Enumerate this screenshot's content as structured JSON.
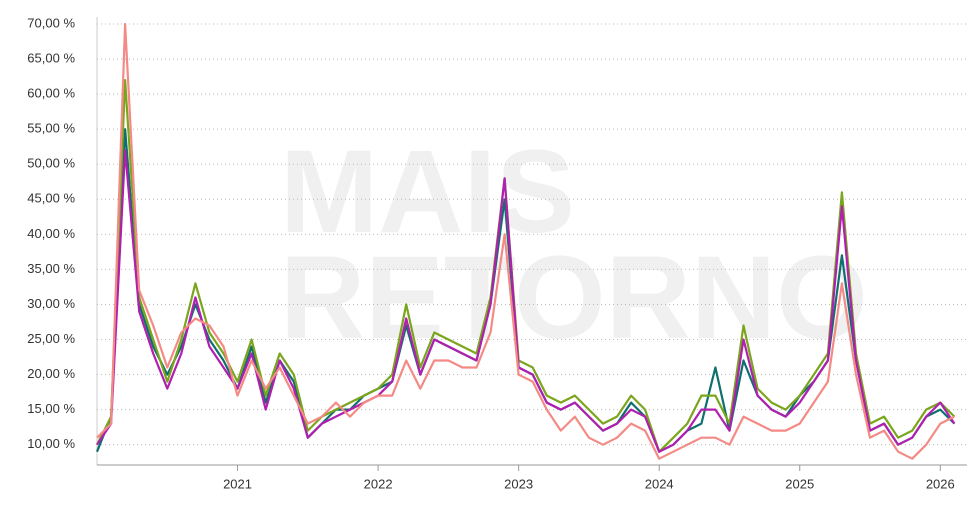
{
  "chart_data": {
    "type": "line",
    "watermark": [
      "MAIS",
      "RETORNO"
    ],
    "x": [
      2020.0,
      2020.1,
      2020.2,
      2020.3,
      2020.4,
      2020.5,
      2020.6,
      2020.7,
      2020.8,
      2020.9,
      2021.0,
      2021.1,
      2021.2,
      2021.3,
      2021.4,
      2021.5,
      2021.6,
      2021.7,
      2021.8,
      2021.9,
      2022.0,
      2022.1,
      2022.2,
      2022.3,
      2022.4,
      2022.5,
      2022.6,
      2022.7,
      2022.8,
      2022.9,
      2023.0,
      2023.1,
      2023.2,
      2023.3,
      2023.4,
      2023.5,
      2023.6,
      2023.7,
      2023.8,
      2023.9,
      2024.0,
      2024.1,
      2024.2,
      2024.3,
      2024.4,
      2024.5,
      2024.6,
      2024.7,
      2024.8,
      2024.9,
      2025.0,
      2025.1,
      2025.2,
      2025.3,
      2025.4,
      2025.5,
      2025.6,
      2025.7,
      2025.8,
      2025.9,
      2026.0,
      2026.1
    ],
    "series": [
      {
        "color": "#0f6e6e",
        "values": [
          9,
          14,
          55,
          30,
          24,
          20,
          24,
          30,
          25,
          22,
          18,
          24,
          16,
          22,
          19,
          11,
          13,
          15,
          15,
          17,
          18,
          19,
          27,
          20,
          25,
          24,
          23,
          22,
          30,
          45,
          21,
          20,
          16,
          15,
          16,
          14,
          12,
          13,
          16,
          14,
          9,
          10,
          12,
          13,
          21,
          12,
          22,
          17,
          15,
          14,
          17,
          19,
          22,
          37,
          22,
          12,
          13,
          10,
          11,
          14,
          15,
          13
        ]
      },
      {
        "color": "#7aa51c",
        "values": [
          10,
          14,
          62,
          31,
          25,
          19,
          25,
          33,
          26,
          23,
          19,
          25,
          17,
          23,
          20,
          12,
          14,
          15,
          16,
          17,
          18,
          20,
          30,
          21,
          26,
          25,
          24,
          23,
          31,
          48,
          22,
          21,
          17,
          16,
          17,
          15,
          13,
          14,
          17,
          15,
          9,
          11,
          13,
          17,
          17,
          13,
          27,
          18,
          16,
          15,
          17,
          20,
          23,
          46,
          23,
          13,
          14,
          11,
          12,
          15,
          16,
          14
        ]
      },
      {
        "color": "#b01fb0",
        "values": [
          10,
          13,
          52,
          29,
          23,
          18,
          23,
          31,
          24,
          21,
          18,
          23,
          15,
          22,
          18,
          11,
          13,
          14,
          15,
          16,
          17,
          19,
          28,
          20,
          25,
          24,
          23,
          22,
          30,
          48,
          21,
          20,
          16,
          15,
          16,
          14,
          12,
          13,
          15,
          14,
          9,
          10,
          12,
          15,
          15,
          12,
          25,
          17,
          15,
          14,
          16,
          19,
          22,
          44,
          22,
          12,
          13,
          10,
          11,
          14,
          16,
          13
        ]
      },
      {
        "color": "#f48a85",
        "values": [
          11,
          13,
          70,
          32,
          27,
          21,
          26,
          28,
          27,
          24,
          17,
          22,
          18,
          21,
          17,
          13,
          14,
          16,
          14,
          16,
          17,
          17,
          22,
          18,
          22,
          22,
          21,
          21,
          26,
          40,
          20,
          19,
          15,
          12,
          14,
          11,
          10,
          11,
          13,
          12,
          8,
          9,
          10,
          11,
          11,
          10,
          14,
          13,
          12,
          12,
          13,
          16,
          19,
          33,
          20,
          11,
          12,
          9,
          8,
          10,
          13,
          14
        ]
      }
    ],
    "xlim": [
      2020.0,
      2026.19
    ],
    "ylim": [
      7.1,
      71
    ],
    "xticks": [
      2021,
      2022,
      2023,
      2024,
      2025,
      2026
    ],
    "yticks": [
      {
        "value": 10,
        "label": "10,00 %"
      },
      {
        "value": 15,
        "label": "15,00 %"
      },
      {
        "value": 20,
        "label": "20,00 %"
      },
      {
        "value": 25,
        "label": "25,00 %"
      },
      {
        "value": 30,
        "label": "30,00 %"
      },
      {
        "value": 35,
        "label": "35,00 %"
      },
      {
        "value": 40,
        "label": "40,00 %"
      },
      {
        "value": 45,
        "label": "45,00 %"
      },
      {
        "value": 50,
        "label": "50,00 %"
      },
      {
        "value": 55,
        "label": "55,00 %"
      },
      {
        "value": 60,
        "label": "60,00 %"
      },
      {
        "value": 65,
        "label": "65,00 %"
      },
      {
        "value": 70,
        "label": "70,00 %"
      }
    ],
    "grid": true
  }
}
